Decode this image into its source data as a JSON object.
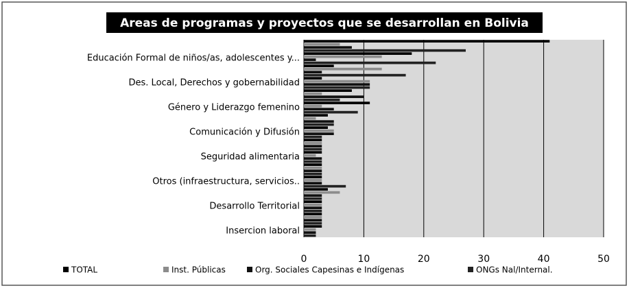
{
  "chart_data": {
    "type": "barh",
    "title": "Areas de programas y proyectos que se desarrollan en Bolivia",
    "categories": [
      null,
      "Educación Formal de niños/as, adolescentes y...",
      null,
      "Des. Local, Derechos y gobernabilidad",
      null,
      "Género y Liderazgo femenino",
      null,
      "Comunicación y Difusión",
      null,
      "Seguridad alimentaria",
      null,
      "Otros (infraestructura, servicios..",
      null,
      "Desarrollo Territorial",
      null,
      "Insercion laboral"
    ],
    "series": [
      {
        "name": "TOTAL",
        "color": "#000000",
        "values": [
          41,
          18,
          5,
          3,
          8,
          11,
          4,
          4,
          3,
          3,
          3,
          3,
          4,
          3,
          3,
          3
        ]
      },
      {
        "name": "Inst. Públicas",
        "color": "#8c8c8c",
        "values": [
          6,
          13,
          13,
          11,
          3,
          3,
          2,
          5,
          3,
          2,
          3,
          3,
          6,
          3,
          3,
          2
        ]
      },
      {
        "name": "Org. Sociales Capesinas e Indígenas",
        "color": "#111111",
        "values": [
          8,
          2,
          3,
          11,
          10,
          5,
          5,
          5,
          3,
          3,
          3,
          3,
          3,
          3,
          3,
          2
        ]
      },
      {
        "name": "ONGs Nal/Internal.",
        "color": "#222222",
        "values": [
          27,
          22,
          17,
          11,
          6,
          9,
          5,
          3,
          3,
          3,
          3,
          7,
          3,
          3,
          3,
          2
        ]
      }
    ],
    "xlim": [
      0,
      50
    ],
    "xticks": [
      0,
      10,
      20,
      30,
      40,
      50
    ],
    "grid": true,
    "legend": "bottom"
  }
}
